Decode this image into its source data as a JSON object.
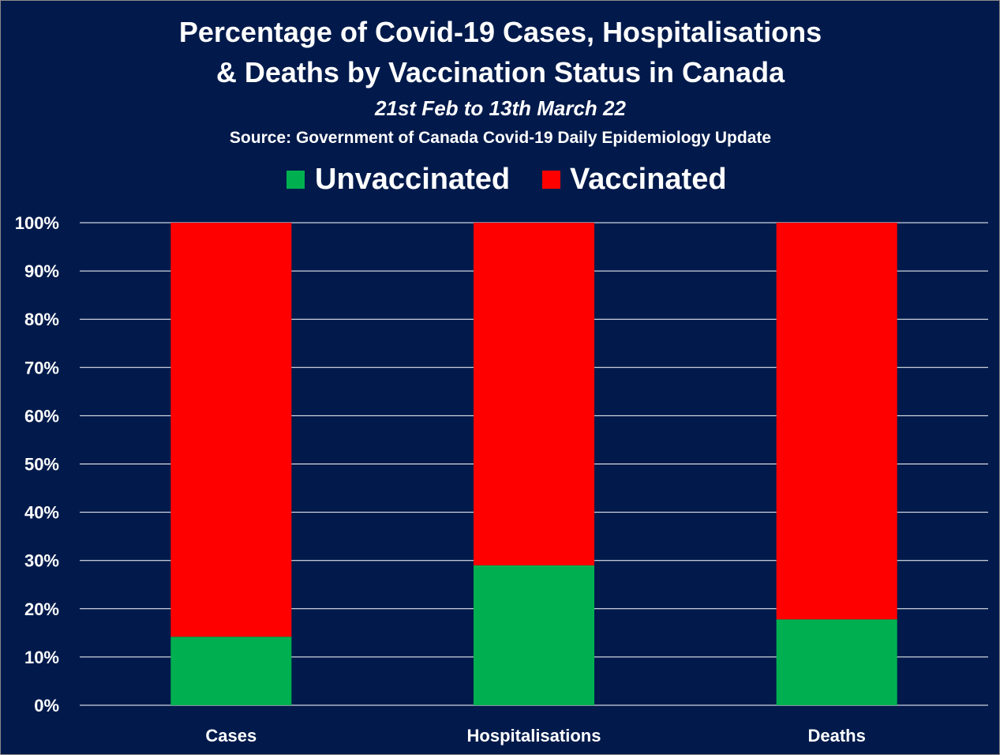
{
  "chart_data": {
    "type": "bar",
    "stacked": true,
    "title": "Percentage of Covid-19 Cases, Hospitalisations & Deaths by Vaccination Status in Canada",
    "title_lines": [
      "Percentage of Covid-19 Cases, Hospitalisations",
      "& Deaths by Vaccination Status in Canada"
    ],
    "subtitle": "21st Feb to 13th March 22",
    "source": "Source: Government of Canada  Covid-19 Daily Epidemiology Update",
    "categories": [
      "Cases",
      "Hospitalisations",
      "Deaths"
    ],
    "series": [
      {
        "name": "Unvaccinated",
        "color": "#00b050",
        "values": [
          14.2,
          29.0,
          17.8
        ]
      },
      {
        "name": "Vaccinated",
        "color": "#ff0000",
        "values": [
          85.8,
          71.0,
          82.2
        ]
      }
    ],
    "y_ticks": [
      "0%",
      "10%",
      "20%",
      "30%",
      "40%",
      "50%",
      "60%",
      "70%",
      "80%",
      "90%",
      "100%"
    ],
    "ylim": [
      0,
      100
    ],
    "xlabel": "",
    "ylabel": "",
    "grid": true,
    "legend_position": "top-center",
    "background_color": "#011a4b",
    "gridline_color": "#ffffff",
    "text_color": "#ffffff"
  }
}
